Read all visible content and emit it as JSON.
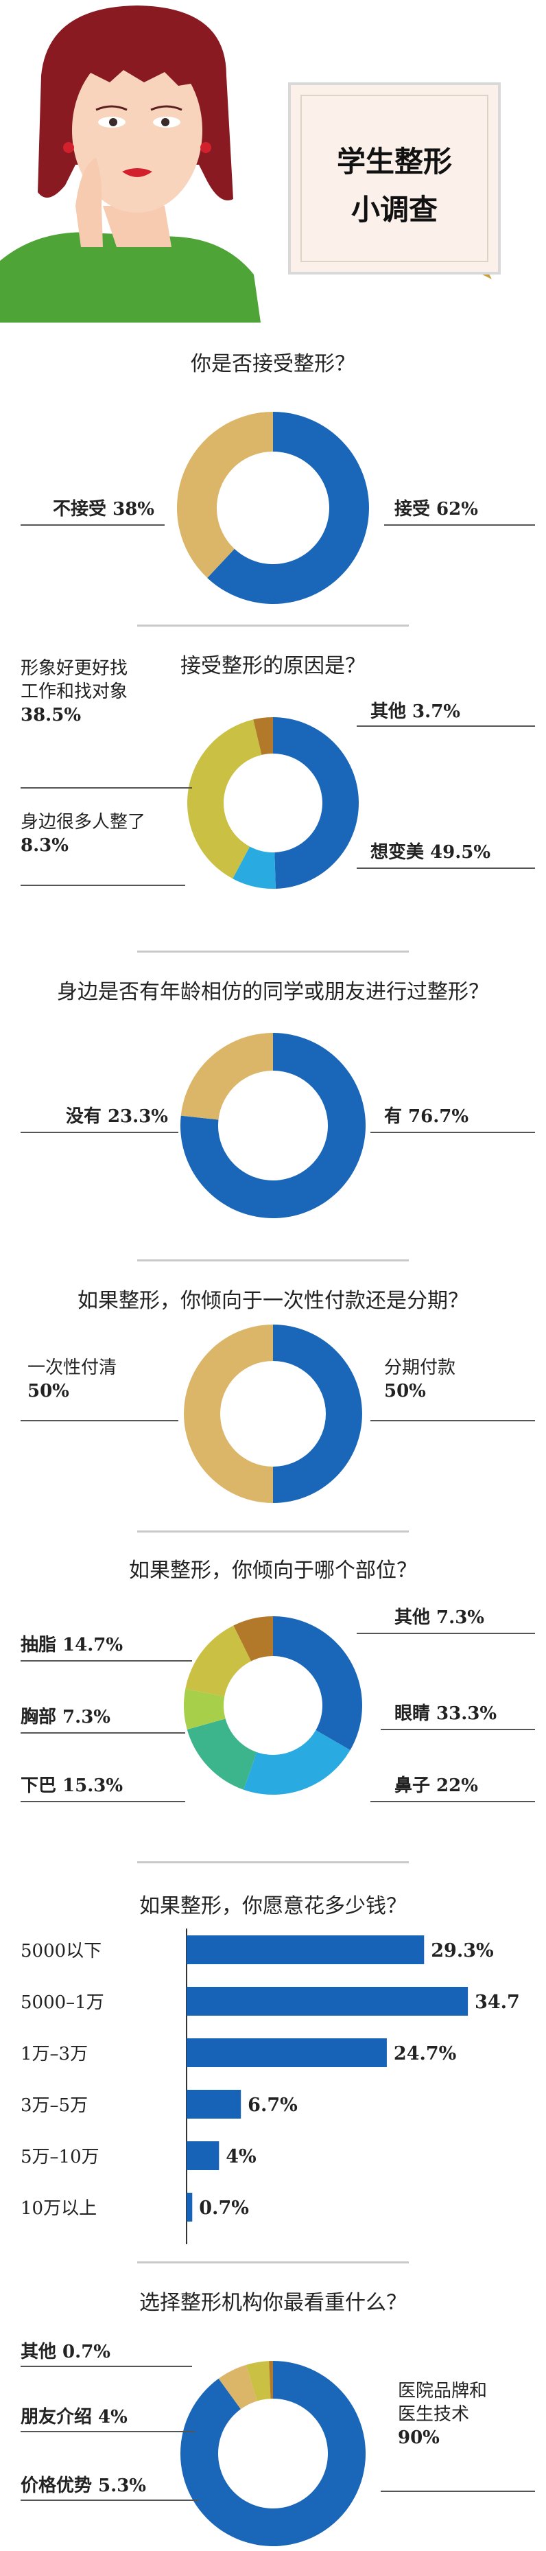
{
  "header": {
    "title_line1": "学生整形",
    "title_line2": "小调查"
  },
  "colors": {
    "blue": "#1a66b8",
    "gold": "#dbb568",
    "olive": "#c9c044",
    "light_blue": "#29abe2",
    "brown": "#b3792a",
    "teal": "#3cb48c",
    "light_green": "#a8cf4a",
    "bar_blue": "#1763b8"
  },
  "sections": [
    {
      "title": "你是否接受整形？"
    },
    {
      "title": "接受整形的原因是？"
    },
    {
      "title": "身边是否有年龄相仿的同学或朋友进行过整形？"
    },
    {
      "title": "如果整形，你倾向于一次性付款还是分期？"
    },
    {
      "title": "如果整形，你倾向于哪个部位？"
    },
    {
      "title": "如果整形，你愿意花多少钱？"
    },
    {
      "title": "选择整形机构你最看重什么？"
    }
  ],
  "chart_data": [
    {
      "type": "pie",
      "title": "你是否接受整形？",
      "slices": [
        {
          "label": "接受",
          "value": 62,
          "display": "62%",
          "color": "#1a66b8"
        },
        {
          "label": "不接受",
          "value": 38,
          "display": "38%",
          "color": "#dbb568"
        }
      ]
    },
    {
      "type": "pie",
      "title": "接受整形的原因是？",
      "slices": [
        {
          "label": "想变美",
          "value": 49.5,
          "display": "49.5%",
          "color": "#1a66b8"
        },
        {
          "label": "身边很多人整了",
          "value": 8.3,
          "display": "8.3%",
          "color": "#29abe2"
        },
        {
          "label": "形象好更好找工作和找对象",
          "value": 38.5,
          "display": "38.5%",
          "color": "#c9c044"
        },
        {
          "label": "其他",
          "value": 3.7,
          "display": "3.7%",
          "color": "#b3792a"
        }
      ]
    },
    {
      "type": "pie",
      "title": "身边是否有年龄相仿的同学或朋友进行过整形？",
      "slices": [
        {
          "label": "有",
          "value": 76.7,
          "display": "76.7%",
          "color": "#1a66b8"
        },
        {
          "label": "没有",
          "value": 23.3,
          "display": "23.3%",
          "color": "#dbb568"
        }
      ]
    },
    {
      "type": "pie",
      "title": "如果整形，你倾向于一次性付款还是分期？",
      "slices": [
        {
          "label": "分期付款",
          "value": 50,
          "display": "50%",
          "color": "#1a66b8"
        },
        {
          "label": "一次性付清",
          "value": 50,
          "display": "50%",
          "color": "#dbb568"
        }
      ]
    },
    {
      "type": "pie",
      "title": "如果整形，你倾向于哪个部位？",
      "slices": [
        {
          "label": "眼睛",
          "value": 33.3,
          "display": "33.3%",
          "color": "#1a66b8"
        },
        {
          "label": "鼻子",
          "value": 22,
          "display": "22%",
          "color": "#29abe2"
        },
        {
          "label": "下巴",
          "value": 15.3,
          "display": "15.3%",
          "color": "#3cb48c"
        },
        {
          "label": "胸部",
          "value": 7.3,
          "display": "7.3%",
          "color": "#a8cf4a"
        },
        {
          "label": "抽脂",
          "value": 14.7,
          "display": "14.7%",
          "color": "#c9c044"
        },
        {
          "label": "其他",
          "value": 7.3,
          "display": "7.3%",
          "color": "#b3792a"
        }
      ]
    },
    {
      "type": "bar",
      "orientation": "horizontal",
      "title": "如果整形，你愿意花多少钱？",
      "categories": [
        "5000以下",
        "5000–1万",
        "1万–3万",
        "3万–5万",
        "5万–10万",
        "10万以上"
      ],
      "values": [
        29.3,
        34.7,
        24.7,
        6.7,
        4,
        0.7
      ],
      "value_labels": [
        "29.3%",
        "34.7",
        "24.7%",
        "6.7%",
        "4%",
        "0.7%"
      ],
      "color": "#1763b8"
    },
    {
      "type": "pie",
      "title": "选择整形机构你最看重什么？",
      "slices": [
        {
          "label": "医院品牌和医生技术",
          "value": 90,
          "display": "90%",
          "color": "#1a66b8"
        },
        {
          "label": "价格优势",
          "value": 5.3,
          "display": "5.3%",
          "color": "#dbb568"
        },
        {
          "label": "朋友介绍",
          "value": 4,
          "display": "4%",
          "color": "#c9c044"
        },
        {
          "label": "其他",
          "value": 0.7,
          "display": "0.7%",
          "color": "#b3792a"
        }
      ]
    }
  ]
}
